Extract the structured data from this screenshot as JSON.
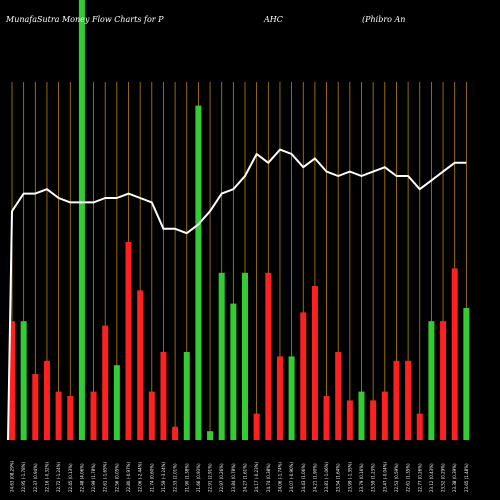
{
  "chart_data": {
    "type": "bar",
    "title_parts": [
      "MunafaSutra  Money Flow  Charts for P",
      "AHC",
      "(Phibro  An"
    ],
    "ylim": [
      0,
      100
    ],
    "categories": [
      "24.63 (08.29%)",
      "22.95 (-1.78%)",
      "22.37 (0.94%)",
      "22.16 (-0.32%)",
      "22.72 (-1.24%)",
      "22.45 (0.13%)",
      "22.48 (4.06%)",
      "22.99 (1.78%)",
      "22.61 (-1.65%)",
      "22.56 (0.05%)",
      "22.80 (-0.97%)",
      "22.06 (-2.44%)",
      "21.74 (0.60%)",
      "21.59 (-3.24%)",
      "22.33 (2.01%)",
      "21.90 (1.38%)",
      "21.66 (0.93%)",
      "22.91 (2.91%)",
      "22.97 (0.26%)",
      "23.84 (0.78%)",
      "24.27 (1.61%)",
      "24.17 (-0.23%)",
      "24.74 (0.38%)",
      "24.06 (-1.74%)",
      "24.07 (-0.90%)",
      "24.43 (1.06%)",
      "24.21 (1.90%)",
      "23.81 (-1.06%)",
      "23.54 (1.64%)",
      "23.99 (-1.35%)",
      "23.79 (0.16%)",
      "23.59 (1.23%)",
      "23.47 (-0.04%)",
      "22.53 (0.59%)",
      "22.61 (1.35%)",
      "22.77 (0.26%)",
      "23.12 (0.43%)",
      "23.52 (0.29%)",
      "23.38 (0.39%)",
      "23.65 (1.48%)"
    ],
    "bar_colors": [
      "red",
      "lime",
      "red",
      "red",
      "red",
      "red",
      "lime",
      "red",
      "red",
      "lime",
      "red",
      "red",
      "red",
      "red",
      "red",
      "lime",
      "lime",
      "lime",
      "lime",
      "lime",
      "lime",
      "red",
      "red",
      "red",
      "lime",
      "red",
      "red",
      "red",
      "red",
      "red",
      "lime",
      "red",
      "red",
      "red",
      "red",
      "red",
      "lime",
      "red",
      "red",
      "lime"
    ],
    "bar_values": [
      27,
      27,
      15,
      18,
      11,
      10,
      100,
      11,
      26,
      17,
      45,
      34,
      11,
      20,
      3,
      20,
      76,
      2,
      38,
      31,
      38,
      6,
      38,
      19,
      19,
      29,
      35,
      10,
      20,
      9,
      11,
      9,
      11,
      18,
      18,
      6,
      27,
      27,
      39,
      30
    ],
    "line_values": [
      52,
      56,
      56,
      57,
      55,
      54,
      54,
      54,
      55,
      55,
      56,
      55,
      54,
      48,
      48,
      47,
      49,
      52,
      56,
      57,
      60,
      65,
      63,
      66,
      65,
      62,
      64,
      61,
      60,
      61,
      60,
      61,
      62,
      60,
      60,
      57,
      59,
      61,
      63,
      63
    ],
    "grid": true,
    "colors": {
      "background": "#000000",
      "grid": "#b8860b",
      "up": "#32cd32",
      "down": "#ff2020",
      "line": "#ffffff"
    }
  }
}
